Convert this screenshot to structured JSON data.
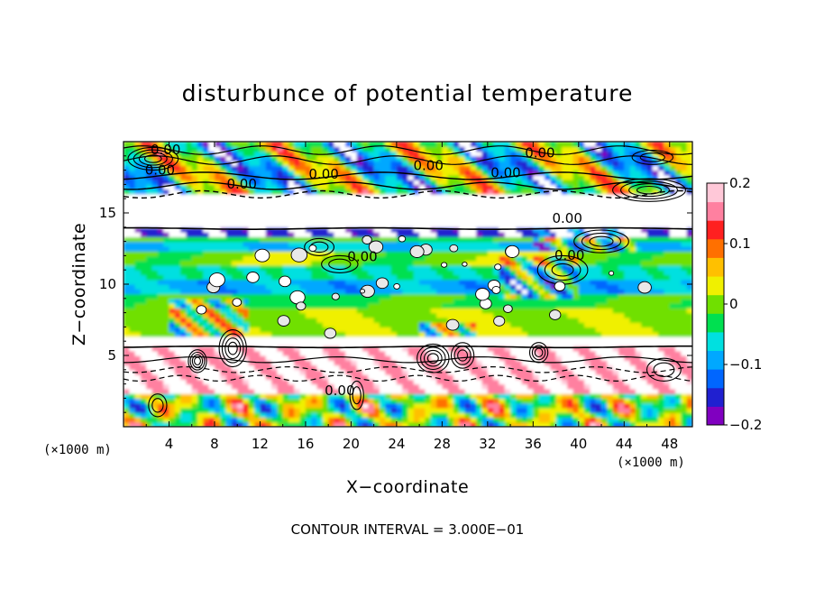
{
  "chart_data": {
    "type": "heatmap",
    "title": "disturbunce of potential temperature",
    "xlabel": "X−coordinate",
    "ylabel": "Z−coordinate",
    "x_unit_label": "(×1000 m)",
    "z_unit_label": "(×1000 m)",
    "x_ticks": [
      4,
      8,
      12,
      16,
      20,
      24,
      28,
      32,
      36,
      40,
      44,
      48
    ],
    "z_ticks": [
      5,
      10,
      15
    ],
    "xlim": [
      0,
      50
    ],
    "zlim": [
      0,
      20
    ],
    "colorbar": {
      "ticks": [
        "0.2",
        "0.1",
        "0",
        "−0.1",
        "−0.2"
      ],
      "range": [
        -0.2,
        0.2
      ]
    },
    "contour_labels": [
      "0.00",
      "0.00",
      "0.00",
      "0.00",
      "0.00",
      "0.00",
      "0.00",
      "0.00",
      "0.00",
      "0.00",
      "0.00"
    ],
    "contour_interval_text": "CONTOUR INTERVAL = 3.000E−01",
    "band_anomalies": [
      {
        "z": [
          0,
          2.2
        ],
        "value": "mixed ±0.2"
      },
      {
        "z": [
          2.2,
          5.5
        ],
        "value": 0.3
      },
      {
        "z": [
          5.5,
          6.2
        ],
        "value": -0.2
      },
      {
        "z": [
          6.2,
          14
        ],
        "value": -0.05
      },
      {
        "z": [
          14,
          16.5
        ],
        "value": 0.3
      },
      {
        "z": [
          16.5,
          20
        ],
        "value": "mixed ±0.2"
      }
    ],
    "colors": {
      "palette": [
        "#8000c0",
        "#2020d0",
        "#0066ff",
        "#00a8ff",
        "#00e0e0",
        "#00e050",
        "#70e000",
        "#f0f000",
        "#ffc000",
        "#ff7000",
        "#ff2020",
        "#ff80a0",
        "#ffc8d8"
      ]
    }
  }
}
